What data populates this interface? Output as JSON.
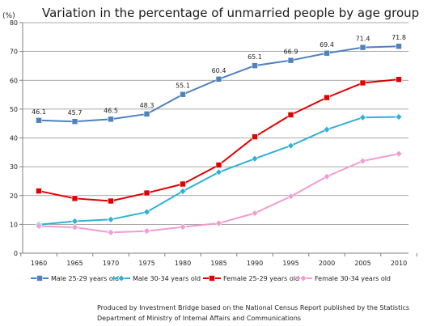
{
  "chart_data": {
    "type": "line",
    "title": "Variation in the percentage of unmarried people by age group",
    "ylabel": "(%)",
    "xlabel": "",
    "ylim": [
      0,
      80
    ],
    "yticks": [
      "0",
      "10",
      "20",
      "30",
      "40",
      "50",
      "60",
      "70",
      "80"
    ],
    "categories": [
      "1960",
      "1965",
      "1970",
      "1975",
      "1980",
      "1985",
      "1990",
      "1995",
      "2000",
      "2005",
      "2010"
    ],
    "grid": true,
    "legend_position": "bottom",
    "series": [
      {
        "name": "Male 25-29 years old",
        "color": "#4f81bd",
        "marker": "square",
        "values": [
          46.1,
          45.7,
          46.5,
          48.3,
          55.1,
          60.4,
          65.1,
          66.9,
          69.4,
          71.4,
          71.8
        ],
        "data_labels": [
          "46.1",
          "45.7",
          "46.5",
          "48.3",
          "55.1",
          "60.4",
          "65.1",
          "66.9",
          "69.4",
          "71.4",
          "71.8"
        ]
      },
      {
        "name": "Male 30-34 years old",
        "color": "#31b0d5",
        "marker": "diamond",
        "values": [
          9.9,
          11.1,
          11.7,
          14.3,
          21.5,
          28.1,
          32.8,
          37.3,
          42.9,
          47.1,
          47.3
        ]
      },
      {
        "name": "Female 25-29 years old",
        "color": "#e00000",
        "marker": "square",
        "values": [
          21.6,
          19.0,
          18.1,
          20.9,
          24.0,
          30.6,
          40.4,
          48.0,
          54.0,
          59.1,
          60.3
        ]
      },
      {
        "name": "Female 30-34 years old",
        "color": "#f29bd4",
        "marker": "diamond",
        "values": [
          9.4,
          9.0,
          7.2,
          7.7,
          9.1,
          10.4,
          13.9,
          19.7,
          26.6,
          32.0,
          34.5
        ]
      }
    ]
  },
  "caption": {
    "line1": "Produced by Investment Bridge  based on the National Census Report published by the Statistics",
    "line2": "Department of Ministry of Internal Affairs and Communications"
  }
}
